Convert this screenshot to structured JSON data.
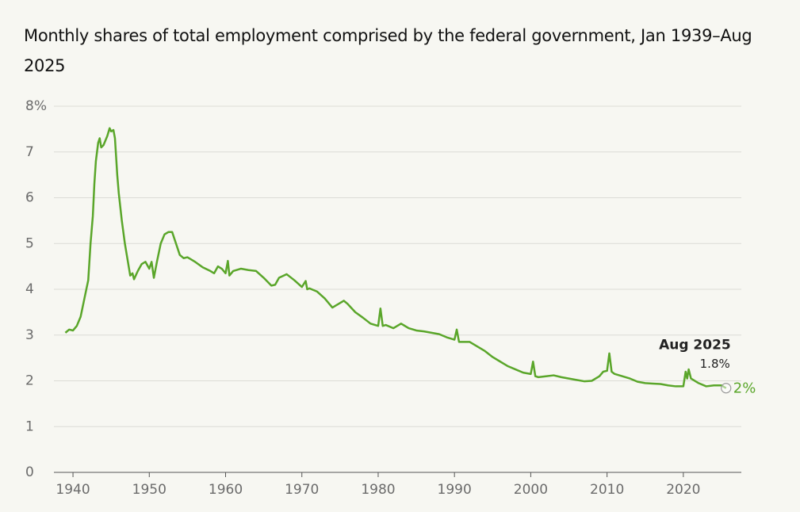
{
  "chart_data": {
    "type": "line",
    "title": "Monthly shares of total employment comprised by the federal government, Jan 1939–Aug 2025",
    "xlim": [
      1937.5,
      2027.6
    ],
    "ylim": [
      0,
      8
    ],
    "xticks": [
      1940,
      1950,
      1960,
      1970,
      1980,
      1990,
      2000,
      2010,
      2020
    ],
    "yticks": [
      0,
      1,
      2,
      3,
      4,
      5,
      6,
      7,
      {
        "value": 8,
        "label": "8%"
      }
    ],
    "grid": true,
    "annotation": {
      "title": "Aug 2025",
      "text": "1.8%",
      "end_label": "2%"
    },
    "series": [
      {
        "color": "#5aa62a",
        "x": [
          1939.0,
          1939.5,
          1940,
          1940.5,
          1941,
          1941.5,
          1942,
          1942.3,
          1942.6,
          1942.8,
          1943,
          1943.3,
          1943.5,
          1943.7,
          1944,
          1944.5,
          1944.8,
          1945,
          1945.3,
          1945.5,
          1945.8,
          1946,
          1946.4,
          1946.8,
          1947.2,
          1947.5,
          1947.8,
          1948,
          1948.5,
          1949,
          1949.5,
          1950,
          1950.3,
          1950.6,
          1951,
          1951.5,
          1952,
          1952.5,
          1953,
          1953.5,
          1954,
          1954.5,
          1955,
          1956,
          1957,
          1958,
          1958.5,
          1959,
          1959.5,
          1960,
          1960.3,
          1960.5,
          1961,
          1962,
          1963,
          1964,
          1965,
          1966,
          1966.5,
          1967,
          1968,
          1969,
          1970,
          1970.5,
          1970.7,
          1971,
          1972,
          1973,
          1974,
          1975,
          1975.5,
          1976,
          1977,
          1978,
          1979,
          1980,
          1980.3,
          1980.6,
          1981,
          1982,
          1983,
          1984,
          1985,
          1986,
          1987,
          1988,
          1989,
          1990,
          1990.3,
          1990.6,
          1991,
          1992,
          1993,
          1994,
          1995,
          1996,
          1997,
          1998,
          1999,
          2000,
          2000.3,
          2000.6,
          2001,
          2002,
          2003,
          2004,
          2005,
          2006,
          2007,
          2008,
          2009,
          2009.5,
          2010,
          2010.3,
          2010.6,
          2011,
          2012,
          2013,
          2014,
          2015,
          2016,
          2017,
          2018,
          2019,
          2020,
          2020.3,
          2020.5,
          2020.7,
          2021,
          2022,
          2023,
          2024,
          2025,
          2025.6
        ],
        "values": [
          3.05,
          3.12,
          3.1,
          3.2,
          3.4,
          3.8,
          4.2,
          5.0,
          5.6,
          6.3,
          6.8,
          7.2,
          7.3,
          7.1,
          7.15,
          7.35,
          7.52,
          7.45,
          7.48,
          7.3,
          6.5,
          6.1,
          5.5,
          5.0,
          4.6,
          4.3,
          4.35,
          4.22,
          4.4,
          4.55,
          4.6,
          4.45,
          4.6,
          4.25,
          4.6,
          5.0,
          5.2,
          5.25,
          5.25,
          5.0,
          4.75,
          4.68,
          4.7,
          4.6,
          4.48,
          4.4,
          4.35,
          4.5,
          4.45,
          4.35,
          4.62,
          4.3,
          4.4,
          4.45,
          4.42,
          4.4,
          4.25,
          4.08,
          4.1,
          4.25,
          4.33,
          4.2,
          4.05,
          4.18,
          4.0,
          4.02,
          3.95,
          3.8,
          3.6,
          3.7,
          3.75,
          3.68,
          3.5,
          3.38,
          3.25,
          3.2,
          3.58,
          3.2,
          3.22,
          3.15,
          3.25,
          3.15,
          3.1,
          3.08,
          3.05,
          3.02,
          2.95,
          2.9,
          3.12,
          2.85,
          2.85,
          2.85,
          2.75,
          2.65,
          2.52,
          2.42,
          2.32,
          2.25,
          2.18,
          2.15,
          2.42,
          2.1,
          2.08,
          2.1,
          2.12,
          2.08,
          2.05,
          2.02,
          1.99,
          2.0,
          2.1,
          2.2,
          2.22,
          2.6,
          2.2,
          2.15,
          2.1,
          2.05,
          1.98,
          1.95,
          1.94,
          1.93,
          1.9,
          1.88,
          1.88,
          2.2,
          2.05,
          2.25,
          2.05,
          1.95,
          1.88,
          1.9,
          1.9,
          1.84
        ]
      }
    ]
  }
}
